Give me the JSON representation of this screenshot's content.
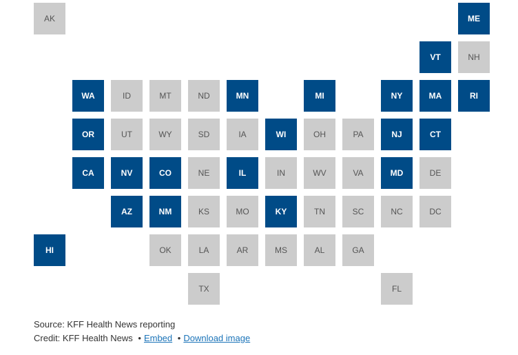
{
  "map": {
    "colors": {
      "highlighted": "#004b87",
      "default": "#cccccc",
      "highlighted_text": "#ffffff",
      "default_text": "#555555"
    },
    "states": [
      {
        "abbr": "AK",
        "highlighted": false
      },
      {
        "abbr": "ME",
        "highlighted": true
      },
      {
        "abbr": "VT",
        "highlighted": true
      },
      {
        "abbr": "NH",
        "highlighted": false
      },
      {
        "abbr": "WA",
        "highlighted": true
      },
      {
        "abbr": "ID",
        "highlighted": false
      },
      {
        "abbr": "MT",
        "highlighted": false
      },
      {
        "abbr": "ND",
        "highlighted": false
      },
      {
        "abbr": "MN",
        "highlighted": true
      },
      {
        "abbr": "MI",
        "highlighted": true
      },
      {
        "abbr": "NY",
        "highlighted": true
      },
      {
        "abbr": "MA",
        "highlighted": true
      },
      {
        "abbr": "RI",
        "highlighted": true
      },
      {
        "abbr": "OR",
        "highlighted": true
      },
      {
        "abbr": "UT",
        "highlighted": false
      },
      {
        "abbr": "WY",
        "highlighted": false
      },
      {
        "abbr": "SD",
        "highlighted": false
      },
      {
        "abbr": "IA",
        "highlighted": false
      },
      {
        "abbr": "WI",
        "highlighted": true
      },
      {
        "abbr": "OH",
        "highlighted": false
      },
      {
        "abbr": "PA",
        "highlighted": false
      },
      {
        "abbr": "NJ",
        "highlighted": true
      },
      {
        "abbr": "CT",
        "highlighted": true
      },
      {
        "abbr": "CA",
        "highlighted": true
      },
      {
        "abbr": "NV",
        "highlighted": true
      },
      {
        "abbr": "CO",
        "highlighted": true
      },
      {
        "abbr": "NE",
        "highlighted": false
      },
      {
        "abbr": "IL",
        "highlighted": true
      },
      {
        "abbr": "IN",
        "highlighted": false
      },
      {
        "abbr": "WV",
        "highlighted": false
      },
      {
        "abbr": "VA",
        "highlighted": false
      },
      {
        "abbr": "MD",
        "highlighted": true
      },
      {
        "abbr": "DE",
        "highlighted": false
      },
      {
        "abbr": "AZ",
        "highlighted": true
      },
      {
        "abbr": "NM",
        "highlighted": true
      },
      {
        "abbr": "KS",
        "highlighted": false
      },
      {
        "abbr": "MO",
        "highlighted": false
      },
      {
        "abbr": "KY",
        "highlighted": true
      },
      {
        "abbr": "TN",
        "highlighted": false
      },
      {
        "abbr": "SC",
        "highlighted": false
      },
      {
        "abbr": "NC",
        "highlighted": false
      },
      {
        "abbr": "DC",
        "highlighted": false
      },
      {
        "abbr": "HI",
        "highlighted": true
      },
      {
        "abbr": "OK",
        "highlighted": false
      },
      {
        "abbr": "LA",
        "highlighted": false
      },
      {
        "abbr": "AR",
        "highlighted": false
      },
      {
        "abbr": "MS",
        "highlighted": false
      },
      {
        "abbr": "AL",
        "highlighted": false
      },
      {
        "abbr": "GA",
        "highlighted": false
      },
      {
        "abbr": "TX",
        "highlighted": false
      },
      {
        "abbr": "FL",
        "highlighted": false
      }
    ]
  },
  "footer": {
    "source": "Source: KFF Health News reporting",
    "credit_prefix": "Credit: KFF Health News",
    "separator": "•",
    "embed_label": "Embed",
    "download_label": "Download image",
    "link_color": "#1a73b8"
  }
}
